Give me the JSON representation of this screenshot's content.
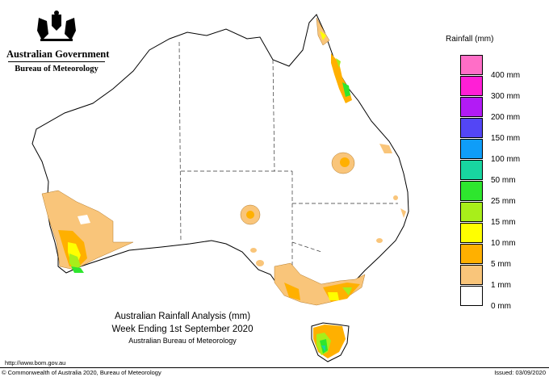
{
  "header": {
    "government": "Australian Government",
    "bureau": "Bureau of Meteorology"
  },
  "legend": {
    "title": "Rainfall (mm)",
    "items": [
      {
        "label": "",
        "color": "#ff6ec7"
      },
      {
        "label": "400 mm",
        "color": "#ff1fd6"
      },
      {
        "label": "300 mm",
        "color": "#b21bf5"
      },
      {
        "label": "200 mm",
        "color": "#5346f5"
      },
      {
        "label": "150 mm",
        "color": "#0f9df8"
      },
      {
        "label": "100 mm",
        "color": "#18d6a0"
      },
      {
        "label": "50 mm",
        "color": "#2ee62e"
      },
      {
        "label": "25 mm",
        "color": "#a8ee1a"
      },
      {
        "label": "15 mm",
        "color": "#ffff00"
      },
      {
        "label": "10 mm",
        "color": "#ffb000"
      },
      {
        "label": "5 mm",
        "color": "#f9c57a"
      },
      {
        "label": "1 mm",
        "color": "#ffffff"
      },
      {
        "label": "0 mm",
        "color": ""
      }
    ]
  },
  "caption": {
    "line1": "Australian Rainfall Analysis (mm)",
    "line2": "Week Ending 1st September 2020",
    "line3": "Australian Bureau of Meteorology"
  },
  "footer": {
    "url": "http://www.bom.gov.au",
    "copyright": "© Commonwealth of Australia 2020, Bureau of Meteorology",
    "issued": "Issued: 03/09/2020"
  },
  "map": {
    "rain_colors": {
      "light": "#f9c57a",
      "medium": "#ffb000",
      "yellow": "#ffff00",
      "lime": "#a8ee1a",
      "green": "#2ee62e",
      "teal": "#18d6a0"
    }
  }
}
